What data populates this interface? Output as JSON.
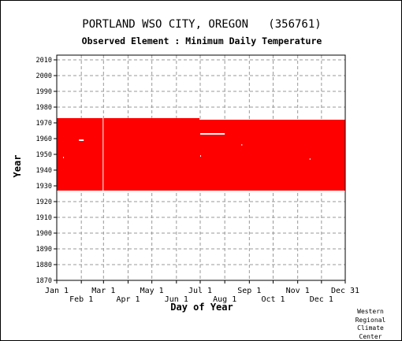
{
  "chart_data": {
    "type": "timeline",
    "title": "PORTLAND WSO CITY, OREGON   (356761)",
    "subtitle": "Observed Element : Minimum Daily Temperature",
    "xlabel": "Day of Year",
    "ylabel": "Year",
    "credit": [
      "Western",
      "Regional",
      "Climate",
      "Center"
    ],
    "x_ticks_top_row": [
      "Jan 1",
      "Mar 1",
      "May 1",
      "Jul 1",
      "Sep 1",
      "Nov 1",
      "Dec 31"
    ],
    "x_ticks_bottom_row": [
      "Feb 1",
      "Apr 1",
      "Jun 1",
      "Aug 1",
      "Oct 1",
      "Dec 1"
    ],
    "y_ticks": [
      "1870",
      "1880",
      "1890",
      "1900",
      "1910",
      "1920",
      "1930",
      "1940",
      "1950",
      "1960",
      "1970",
      "1980",
      "1990",
      "2000",
      "2010"
    ],
    "xlim": [
      1,
      365
    ],
    "ylim": [
      1870,
      2010
    ],
    "grid": true,
    "data_color": "#ff0000",
    "record_blocks": [
      {
        "day_start": 1,
        "day_end": 181,
        "year_start": 1927,
        "year_end": 1973
      },
      {
        "day_start": 181,
        "day_end": 365,
        "year_start": 1927,
        "year_end": 1972
      }
    ],
    "missing_segments": [
      {
        "day_start": 29,
        "day_end": 35,
        "year": 1959
      },
      {
        "day_start": 182,
        "day_end": 213,
        "year": 1963
      },
      {
        "day_start": 59,
        "day_end": 60,
        "year_start": 1927,
        "year_end": 1973
      },
      {
        "day_start": 234,
        "day_end": 235,
        "year": 1956
      },
      {
        "day_start": 9,
        "day_end": 10,
        "year": 1948
      },
      {
        "day_start": 182,
        "day_end": 183,
        "year": 1949
      },
      {
        "day_start": 320,
        "day_end": 321,
        "year": 1947
      }
    ]
  }
}
